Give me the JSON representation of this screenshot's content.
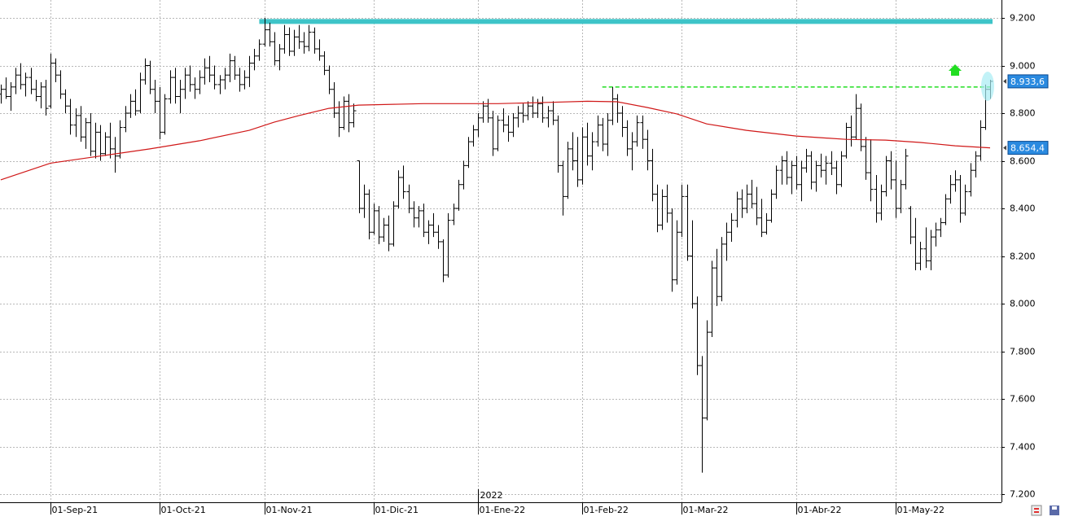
{
  "chart_data": {
    "type": "ohlc",
    "xlim": [
      -0.15,
      201.3
    ],
    "ylim": [
      7200,
      9200
    ],
    "yticks": [
      {
        "value": 7200,
        "label": "7.200"
      },
      {
        "value": 7400,
        "label": "7.400"
      },
      {
        "value": 7600,
        "label": "7.600"
      },
      {
        "value": 7800,
        "label": "7.800"
      },
      {
        "value": 8000,
        "label": "8.000"
      },
      {
        "value": 8200,
        "label": "8.200"
      },
      {
        "value": 8400,
        "label": "8.400"
      },
      {
        "value": 8600,
        "label": "8.600"
      },
      {
        "value": 8800,
        "label": "8.800"
      },
      {
        "value": 9000,
        "label": "9.000"
      },
      {
        "value": 9200,
        "label": "9.200"
      }
    ],
    "xticks": [
      {
        "value": 10,
        "label": "01-Sep-21"
      },
      {
        "value": 32,
        "label": "01-Oct-21"
      },
      {
        "value": 53,
        "label": "01-Nov-21"
      },
      {
        "value": 75,
        "label": "01-Dic-21"
      },
      {
        "value": 96,
        "label": "01-Ene-22"
      },
      {
        "value": 117,
        "label": "01-Feb-22"
      },
      {
        "value": 137,
        "label": "01-Mar-22"
      },
      {
        "value": 160,
        "label": "01-Abr-22"
      },
      {
        "value": 180,
        "label": "01-May-22"
      }
    ],
    "year_marker": {
      "value": 96,
      "label": "2022"
    },
    "grid": true,
    "color": "#000000",
    "ohlc": [
      [
        8880,
        8920,
        8840,
        8900
      ],
      [
        8900,
        8950,
        8860,
        8870
      ],
      [
        8870,
        8930,
        8810,
        8910
      ],
      [
        8910,
        8990,
        8880,
        8960
      ],
      [
        8960,
        9010,
        8900,
        8920
      ],
      [
        8920,
        8970,
        8870,
        8950
      ],
      [
        8950,
        8990,
        8880,
        8900
      ],
      [
        8900,
        8940,
        8850,
        8870
      ],
      [
        8870,
        8930,
        8820,
        8910
      ],
      [
        8910,
        8940,
        8790,
        8820
      ],
      [
        8830,
        9050,
        8820,
        9010
      ],
      [
        9010,
        9030,
        8930,
        8960
      ],
      [
        8960,
        8980,
        8860,
        8880
      ],
      [
        8880,
        8900,
        8800,
        8830
      ],
      [
        8830,
        8860,
        8710,
        8750
      ],
      [
        8750,
        8820,
        8700,
        8790
      ],
      [
        8790,
        8830,
        8680,
        8700
      ],
      [
        8700,
        8780,
        8650,
        8760
      ],
      [
        8760,
        8800,
        8620,
        8640
      ],
      [
        8640,
        8760,
        8610,
        8720
      ],
      [
        8720,
        8750,
        8600,
        8630
      ],
      [
        8630,
        8720,
        8620,
        8700
      ],
      [
        8700,
        8760,
        8610,
        8650
      ],
      [
        8650,
        8700,
        8550,
        8620
      ],
      [
        8620,
        8770,
        8610,
        8740
      ],
      [
        8740,
        8830,
        8720,
        8800
      ],
      [
        8800,
        8880,
        8780,
        8850
      ],
      [
        8850,
        8900,
        8790,
        8810
      ],
      [
        8810,
        8970,
        8800,
        8940
      ],
      [
        8940,
        9030,
        8920,
        9000
      ],
      [
        9000,
        9020,
        8880,
        8900
      ],
      [
        8900,
        8940,
        8800,
        8850
      ],
      [
        8850,
        8910,
        8690,
        8720
      ],
      [
        8720,
        8880,
        8710,
        8860
      ],
      [
        8860,
        8980,
        8840,
        8950
      ],
      [
        8950,
        8990,
        8840,
        8870
      ],
      [
        8870,
        8940,
        8800,
        8900
      ],
      [
        8900,
        8990,
        8860,
        8960
      ],
      [
        8960,
        9000,
        8890,
        8920
      ],
      [
        8920,
        8950,
        8860,
        8900
      ],
      [
        8900,
        8980,
        8880,
        8950
      ],
      [
        8950,
        9030,
        8920,
        8990
      ],
      [
        8990,
        9040,
        8930,
        8960
      ],
      [
        8960,
        9000,
        8900,
        8920
      ],
      [
        8920,
        8960,
        8880,
        8940
      ],
      [
        8940,
        8990,
        8900,
        8960
      ],
      [
        8960,
        9050,
        8930,
        9020
      ],
      [
        9020,
        9040,
        8940,
        8960
      ],
      [
        8960,
        8990,
        8890,
        8920
      ],
      [
        8920,
        8980,
        8900,
        8950
      ],
      [
        8950,
        9040,
        8910,
        9010
      ],
      [
        9010,
        9070,
        8980,
        9040
      ],
      [
        9040,
        9110,
        9020,
        9090
      ],
      [
        9090,
        9200,
        9080,
        9150
      ],
      [
        9150,
        9180,
        9080,
        9100
      ],
      [
        9100,
        9140,
        9000,
        9020
      ],
      [
        9020,
        9090,
        8980,
        9070
      ],
      [
        9070,
        9170,
        9050,
        9130
      ],
      [
        9130,
        9160,
        9040,
        9060
      ],
      [
        9060,
        9150,
        9040,
        9120
      ],
      [
        9120,
        9170,
        9070,
        9100
      ],
      [
        9100,
        9140,
        9050,
        9080
      ],
      [
        9080,
        9170,
        9060,
        9140
      ],
      [
        9140,
        9160,
        9050,
        9070
      ],
      [
        9070,
        9110,
        9020,
        9040
      ],
      [
        9040,
        9060,
        8960,
        8980
      ],
      [
        8980,
        9000,
        8880,
        8900
      ],
      [
        8900,
        8930,
        8780,
        8800
      ],
      [
        8800,
        8850,
        8700,
        8740
      ],
      [
        8740,
        8870,
        8730,
        8850
      ],
      [
        8850,
        8880,
        8720,
        8760
      ],
      [
        8760,
        8840,
        8740,
        8810
      ],
      [
        8600,
        8600,
        8380,
        8400
      ],
      [
        8400,
        8500,
        8360,
        8460
      ],
      [
        8460,
        8480,
        8270,
        8300
      ],
      [
        8300,
        8420,
        8290,
        8390
      ],
      [
        8390,
        8410,
        8250,
        8280
      ],
      [
        8280,
        8360,
        8260,
        8330
      ],
      [
        8330,
        8370,
        8220,
        8250
      ],
      [
        8250,
        8430,
        8240,
        8410
      ],
      [
        8410,
        8560,
        8400,
        8530
      ],
      [
        8530,
        8580,
        8440,
        8470
      ],
      [
        8470,
        8500,
        8380,
        8400
      ],
      [
        8400,
        8430,
        8320,
        8360
      ],
      [
        8360,
        8410,
        8320,
        8390
      ],
      [
        8390,
        8420,
        8280,
        8300
      ],
      [
        8300,
        8350,
        8250,
        8330
      ],
      [
        8330,
        8380,
        8280,
        8300
      ],
      [
        8300,
        8330,
        8230,
        8260
      ],
      [
        8260,
        8270,
        8090,
        8120
      ],
      [
        8120,
        8380,
        8110,
        8350
      ],
      [
        8350,
        8420,
        8330,
        8400
      ],
      [
        8400,
        8520,
        8390,
        8500
      ],
      [
        8500,
        8600,
        8480,
        8580
      ],
      [
        8580,
        8700,
        8570,
        8680
      ],
      [
        8680,
        8750,
        8660,
        8730
      ],
      [
        8730,
        8800,
        8700,
        8780
      ],
      [
        8780,
        8850,
        8760,
        8830
      ],
      [
        8830,
        8860,
        8760,
        8780
      ],
      [
        8780,
        8810,
        8620,
        8650
      ],
      [
        8650,
        8790,
        8640,
        8770
      ],
      [
        8770,
        8820,
        8720,
        8750
      ],
      [
        8750,
        8790,
        8680,
        8720
      ],
      [
        8720,
        8800,
        8700,
        8780
      ],
      [
        8780,
        8830,
        8740,
        8800
      ],
      [
        8800,
        8840,
        8760,
        8790
      ],
      [
        8790,
        8850,
        8770,
        8830
      ],
      [
        8830,
        8870,
        8780,
        8800
      ],
      [
        8800,
        8860,
        8780,
        8840
      ],
      [
        8840,
        8870,
        8760,
        8780
      ],
      [
        8780,
        8830,
        8740,
        8810
      ],
      [
        8810,
        8850,
        8750,
        8770
      ],
      [
        8770,
        8790,
        8550,
        8580
      ],
      [
        8580,
        8600,
        8370,
        8450
      ],
      [
        8450,
        8680,
        8440,
        8650
      ],
      [
        8650,
        8720,
        8560,
        8600
      ],
      [
        8600,
        8700,
        8490,
        8520
      ],
      [
        8520,
        8740,
        8500,
        8700
      ],
      [
        8700,
        8760,
        8580,
        8620
      ],
      [
        8620,
        8720,
        8560,
        8680
      ],
      [
        8680,
        8790,
        8660,
        8750
      ],
      [
        8750,
        8780,
        8640,
        8670
      ],
      [
        8670,
        8800,
        8620,
        8770
      ],
      [
        8770,
        8910,
        8750,
        8860
      ],
      [
        8860,
        8880,
        8760,
        8800
      ],
      [
        8800,
        8830,
        8700,
        8740
      ],
      [
        8740,
        8770,
        8620,
        8650
      ],
      [
        8650,
        8720,
        8560,
        8680
      ],
      [
        8680,
        8790,
        8660,
        8760
      ],
      [
        8760,
        8790,
        8650,
        8690
      ],
      [
        8690,
        8730,
        8560,
        8600
      ],
      [
        8600,
        8650,
        8430,
        8460
      ],
      [
        8460,
        8500,
        8300,
        8330
      ],
      [
        8330,
        8480,
        8310,
        8450
      ],
      [
        8450,
        8500,
        8340,
        8380
      ],
      [
        8380,
        8400,
        8050,
        8100
      ],
      [
        8100,
        8350,
        8080,
        8300
      ],
      [
        8300,
        8500,
        8280,
        8450
      ],
      [
        8450,
        8500,
        8180,
        8200
      ],
      [
        8200,
        8350,
        7980,
        8000
      ],
      [
        8000,
        8030,
        7700,
        7740
      ],
      [
        7740,
        7780,
        7290,
        7520
      ],
      [
        7520,
        7930,
        7510,
        7880
      ],
      [
        7880,
        8180,
        7860,
        8150
      ],
      [
        8150,
        8230,
        7990,
        8030
      ],
      [
        8030,
        8280,
        8010,
        8250
      ],
      [
        8250,
        8340,
        8180,
        8300
      ],
      [
        8300,
        8380,
        8260,
        8350
      ],
      [
        8350,
        8470,
        8320,
        8440
      ],
      [
        8440,
        8480,
        8360,
        8400
      ],
      [
        8400,
        8500,
        8380,
        8460
      ],
      [
        8460,
        8520,
        8400,
        8420
      ],
      [
        8420,
        8490,
        8330,
        8360
      ],
      [
        8360,
        8440,
        8280,
        8300
      ],
      [
        8300,
        8380,
        8290,
        8350
      ],
      [
        8350,
        8480,
        8340,
        8460
      ],
      [
        8460,
        8580,
        8440,
        8560
      ],
      [
        8560,
        8620,
        8500,
        8600
      ],
      [
        8600,
        8640,
        8500,
        8530
      ],
      [
        8530,
        8600,
        8460,
        8580
      ],
      [
        8580,
        8620,
        8480,
        8500
      ],
      [
        8500,
        8600,
        8430,
        8570
      ],
      [
        8570,
        8650,
        8550,
        8620
      ],
      [
        8620,
        8640,
        8480,
        8510
      ],
      [
        8510,
        8600,
        8470,
        8580
      ],
      [
        8580,
        8630,
        8530,
        8560
      ],
      [
        8560,
        8620,
        8500,
        8590
      ],
      [
        8590,
        8640,
        8540,
        8570
      ],
      [
        8570,
        8600,
        8460,
        8500
      ],
      [
        8500,
        8640,
        8490,
        8620
      ],
      [
        8620,
        8760,
        8610,
        8740
      ],
      [
        8740,
        8790,
        8660,
        8700
      ],
      [
        8700,
        8880,
        8690,
        8820
      ],
      [
        8820,
        8840,
        8640,
        8660
      ],
      [
        8660,
        8700,
        8520,
        8550
      ],
      [
        8550,
        8690,
        8430,
        8480
      ],
      [
        8480,
        8540,
        8340,
        8380
      ],
      [
        8380,
        8500,
        8350,
        8470
      ],
      [
        8470,
        8620,
        8450,
        8600
      ],
      [
        8600,
        8640,
        8480,
        8520
      ],
      [
        8520,
        8600,
        8360,
        8400
      ],
      [
        8400,
        8520,
        8380,
        8500
      ],
      [
        8500,
        8650,
        8480,
        8620
      ],
      [
        8400,
        8410,
        8250,
        8280
      ],
      [
        8280,
        8360,
        8140,
        8170
      ],
      [
        8170,
        8260,
        8140,
        8230
      ],
      [
        8230,
        8320,
        8150,
        8180
      ],
      [
        8180,
        8310,
        8140,
        8280
      ],
      [
        8280,
        8340,
        8240,
        8310
      ],
      [
        8310,
        8360,
        8280,
        8340
      ],
      [
        8340,
        8460,
        8330,
        8440
      ],
      [
        8440,
        8540,
        8420,
        8500
      ],
      [
        8500,
        8560,
        8470,
        8520
      ],
      [
        8520,
        8540,
        8340,
        8380
      ],
      [
        8380,
        8500,
        8370,
        8470
      ],
      [
        8470,
        8590,
        8450,
        8560
      ],
      [
        8560,
        8640,
        8530,
        8620
      ],
      [
        8620,
        8770,
        8600,
        8740
      ],
      [
        8740,
        8920,
        8730,
        8900
      ],
      [
        8900,
        8940,
        8860,
        8933.6
      ]
    ],
    "moving_average": {
      "color": "#d01818",
      "x": [
        0,
        10,
        20,
        30,
        40,
        50,
        55,
        60,
        66,
        72,
        85,
        100,
        110,
        118,
        124,
        130,
        136,
        142,
        150,
        160,
        170,
        178,
        185,
        192,
        199
      ],
      "values": [
        8520,
        8590,
        8620,
        8650,
        8684,
        8728,
        8762,
        8790,
        8820,
        8834,
        8840,
        8840,
        8845,
        8850,
        8848,
        8824,
        8797,
        8755,
        8728,
        8704,
        8690,
        8687,
        8677,
        8663,
        8654.4
      ]
    },
    "price_label": {
      "value": 8933.6,
      "label": "8.933,6"
    },
    "ma_label": {
      "value": 8654.4,
      "label": "8.654,4"
    },
    "resistance": {
      "value": 9185,
      "from": 52,
      "to": 199.5,
      "color": "#3ec4c8"
    },
    "breakout_level": {
      "value": 8910,
      "from": 121,
      "to": 199.5,
      "color": "#22dd22"
    }
  }
}
